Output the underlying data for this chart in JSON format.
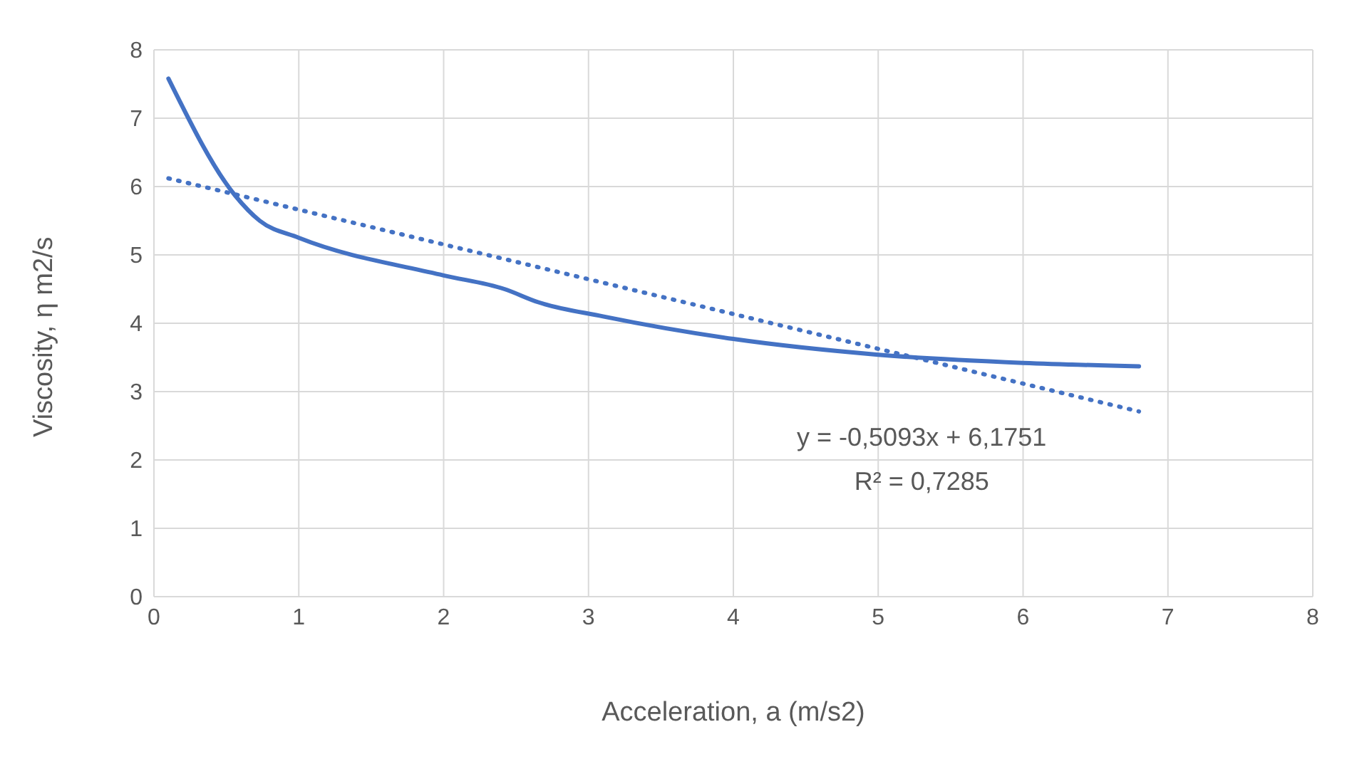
{
  "chart_data": {
    "type": "line",
    "xlabel": "Acceleration, a (m/s2)",
    "ylabel": "Viscosity, η m2/s",
    "xlim": [
      0,
      8
    ],
    "xticks": [
      0,
      1,
      2,
      3,
      4,
      5,
      6,
      7,
      8
    ],
    "ylim": [
      0,
      8
    ],
    "yticks": [
      0,
      1,
      2,
      3,
      4,
      5,
      6,
      7,
      8
    ],
    "grid": true,
    "marker": "none",
    "series": [
      {
        "color": "#4472c4",
        "line_style": "solid",
        "x": [
          0.1,
          0.56,
          0.73,
          1.0,
          2.0,
          2.42,
          2.65,
          3.1,
          4.0,
          5.0,
          6.0,
          6.8
        ],
        "values": [
          7.58,
          5.87,
          5.5,
          5.25,
          4.7,
          4.5,
          4.31,
          4.1,
          3.77,
          3.54,
          3.42,
          3.37
        ]
      },
      {
        "color": "#4472c4",
        "line_style": "dotted",
        "x": [
          0.1,
          6.8
        ],
        "values": [
          6.12,
          2.71
        ]
      }
    ],
    "annotations": [
      "y = -0,5093x + 6,1751",
      "R² = 0,7285"
    ]
  }
}
